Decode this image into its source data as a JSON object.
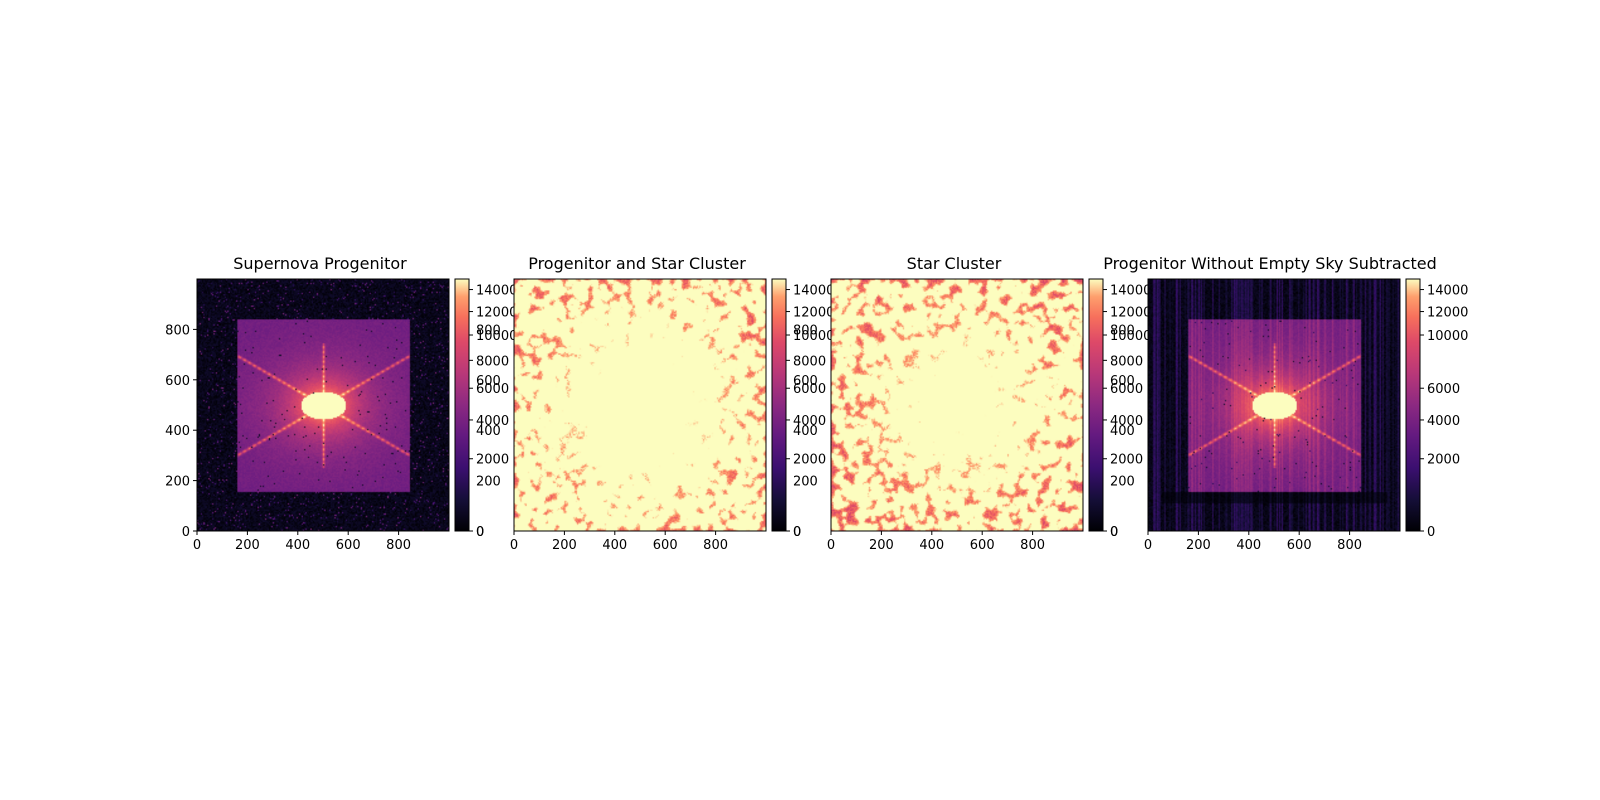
{
  "chart_data": [
    {
      "type": "heatmap",
      "title": "Supernova Progenitor",
      "colormap": "magma",
      "scene": "progenitor",
      "xlim": [
        0,
        1000
      ],
      "ylim": [
        0,
        1000
      ],
      "xticks": [
        0,
        200,
        400,
        600,
        800
      ],
      "yticks": [
        0,
        200,
        400,
        600,
        800
      ],
      "colorbar": {
        "scale": "nonlinear",
        "range": [
          0,
          15000
        ],
        "ticks_primary": [
          0,
          2000,
          4000,
          6000,
          8000,
          10000,
          12000,
          14000
        ],
        "ticks_secondary": [
          0,
          200,
          400,
          600,
          800
        ]
      }
    },
    {
      "type": "heatmap",
      "title": "Progenitor and Star Cluster",
      "colormap": "magma",
      "scene": "cluster-dense",
      "xlim": [
        0,
        1000
      ],
      "ylim": [
        0,
        1000
      ],
      "xticks": [
        0,
        200,
        400,
        600,
        800
      ],
      "yticks": [],
      "colorbar": {
        "scale": "nonlinear",
        "range": [
          0,
          15000
        ],
        "ticks_primary": [
          0,
          2000,
          4000,
          6000,
          8000,
          10000,
          12000,
          14000
        ],
        "ticks_secondary": [
          0,
          200,
          400,
          600,
          800
        ]
      }
    },
    {
      "type": "heatmap",
      "title": "Star Cluster",
      "colormap": "magma",
      "scene": "cluster",
      "xlim": [
        0,
        1000
      ],
      "ylim": [
        0,
        1000
      ],
      "xticks": [
        0,
        200,
        400,
        600,
        800
      ],
      "yticks": [],
      "colorbar": {
        "scale": "nonlinear",
        "range": [
          0,
          15000
        ],
        "ticks_primary": [
          0,
          2000,
          4000,
          6000,
          8000,
          10000,
          12000,
          14000
        ],
        "ticks_secondary": [
          0,
          200,
          400,
          600,
          800
        ]
      }
    },
    {
      "type": "heatmap",
      "title": "Progenitor Without Empty Sky Subtracted",
      "colormap": "magma",
      "scene": "progenitor-streaks",
      "xlim": [
        0,
        1000
      ],
      "ylim": [
        0,
        1000
      ],
      "xticks": [
        0,
        200,
        400,
        600,
        800
      ],
      "yticks": [],
      "colorbar": {
        "scale": "nonlinear",
        "range": [
          0,
          15000
        ],
        "ticks_primary": [
          0,
          2000,
          4000,
          6000,
          10000,
          12000,
          14000
        ],
        "ticks_secondary": []
      }
    }
  ]
}
